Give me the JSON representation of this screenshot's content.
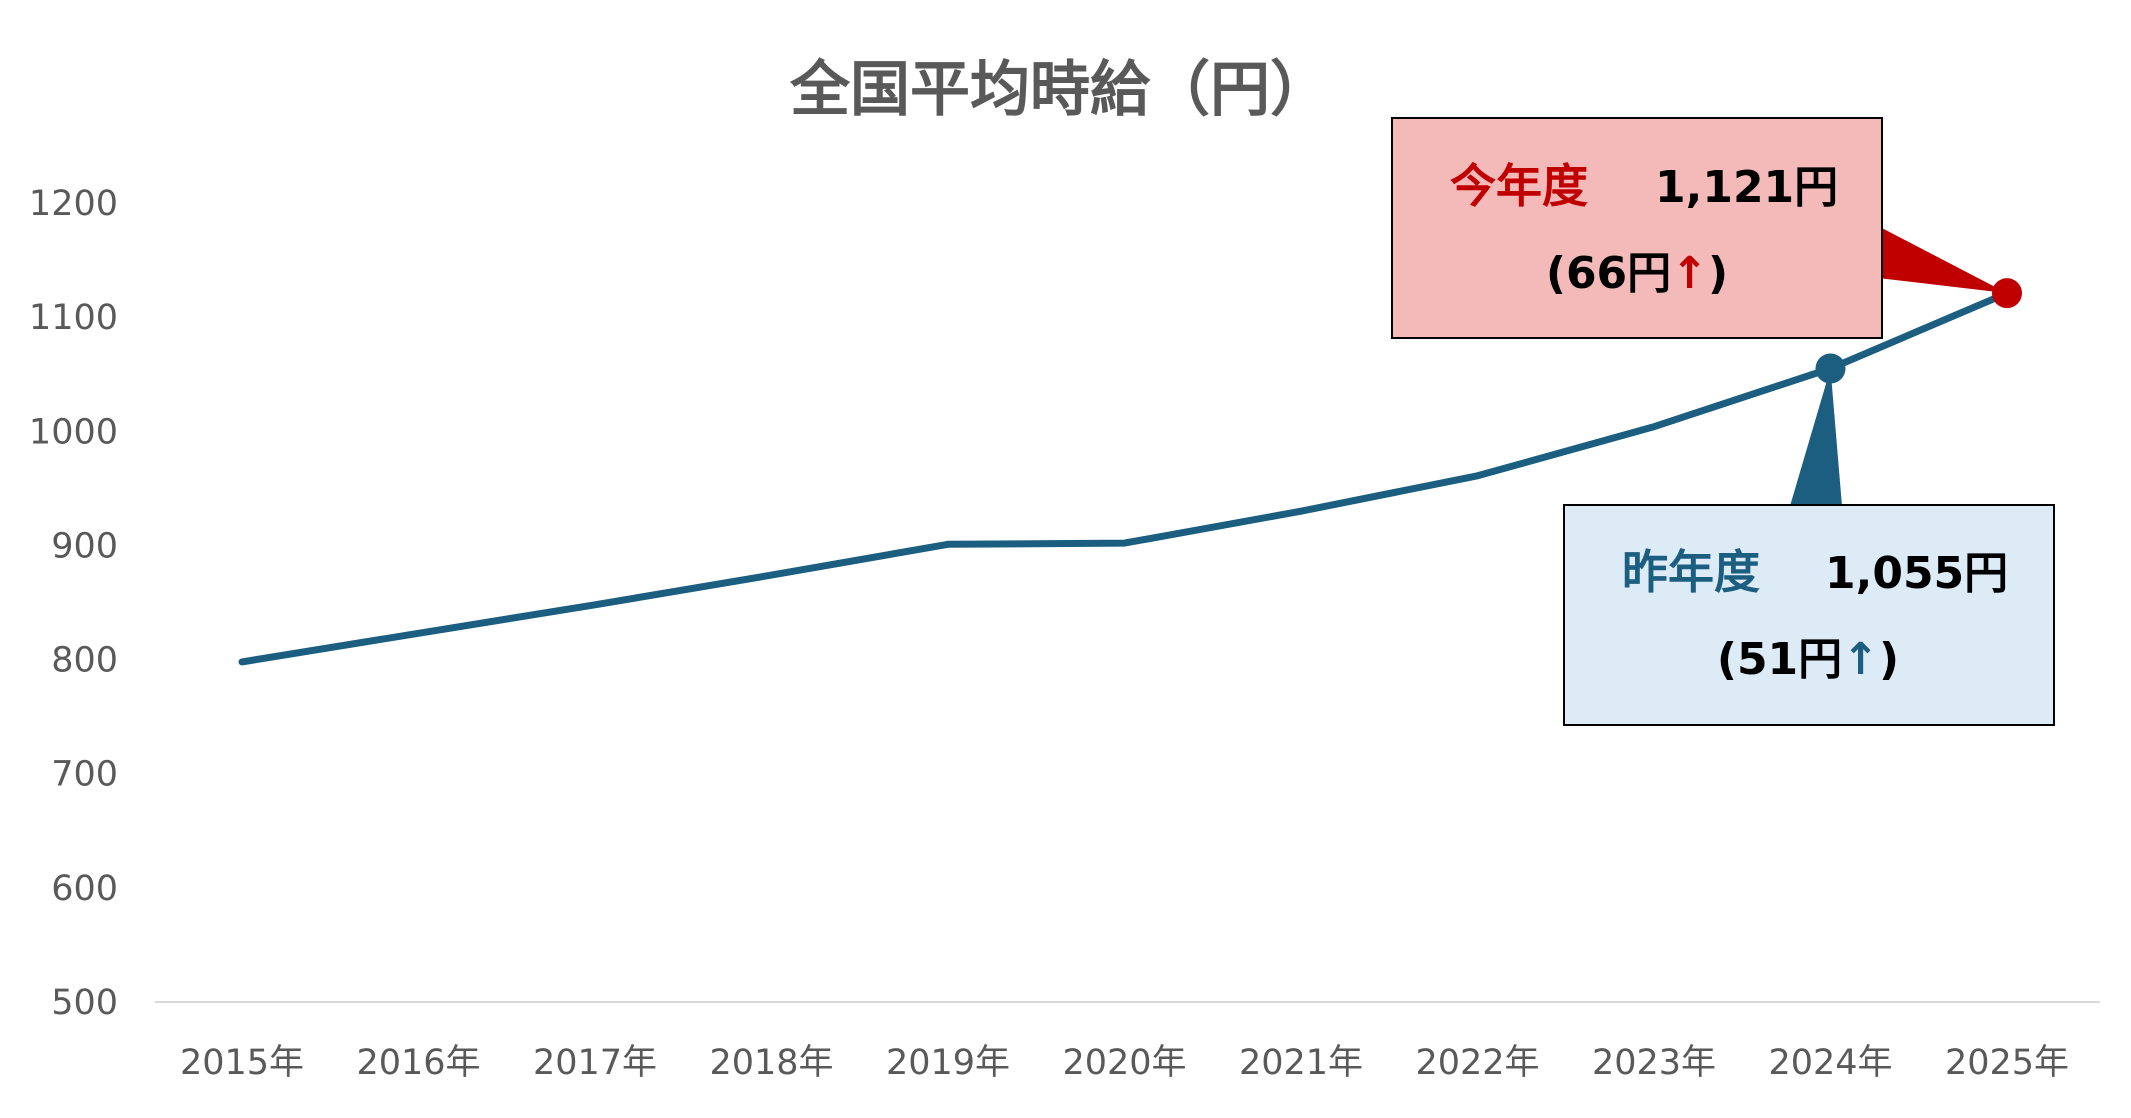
{
  "chart_data": {
    "type": "line",
    "title": "全国平均時給（円）",
    "xlabel": "",
    "ylabel": "",
    "ylim": [
      500,
      1200
    ],
    "yticks": [
      500,
      600,
      700,
      800,
      900,
      1000,
      1100,
      1200
    ],
    "categories": [
      "2015年",
      "2016年",
      "2017年",
      "2018年",
      "2019年",
      "2020年",
      "2021年",
      "2022年",
      "2023年",
      "2024年",
      "2025年"
    ],
    "series": [
      {
        "values": [
          798,
          823,
          848,
          874,
          901,
          902,
          930,
          961,
          1004,
          1055,
          1121
        ]
      }
    ],
    "grid": false,
    "legend": "none",
    "colors": {
      "line": "#1B5E80",
      "current_accent": "#C00000",
      "current_box_fill": "#F4B9B9",
      "previous_accent": "#1B5E80",
      "previous_box_fill": "#DDEBF7",
      "axis_text": "#595959",
      "baseline": "#D9D9D9"
    },
    "annotations": {
      "current": {
        "heading": "今年度",
        "value": "1,121円",
        "diff_open": "(66円",
        "arrow": "↑",
        "diff_close": ")",
        "category_index": 10
      },
      "previous": {
        "heading": "昨年度",
        "value": "1,055円",
        "diff_open": "(51円",
        "arrow": "↑",
        "diff_close": ")",
        "category_index": 9
      }
    }
  }
}
